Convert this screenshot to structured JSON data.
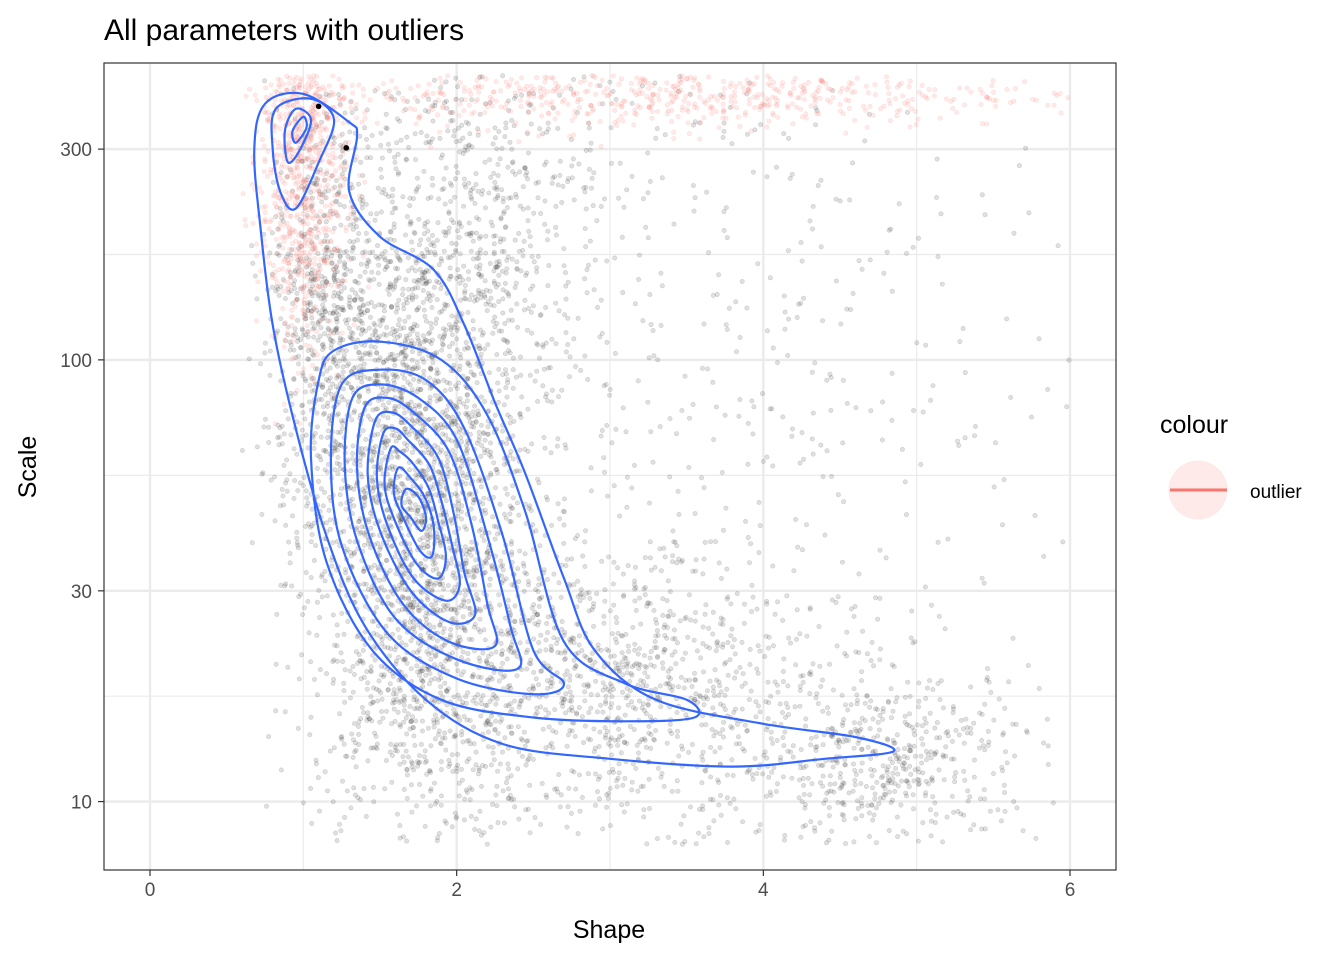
{
  "chart_data": {
    "type": "scatter",
    "title": "All parameters with outliers",
    "xlabel": "Shape",
    "ylabel": "Scale",
    "x_scale": "linear",
    "y_scale": "log10",
    "xlim": [
      -0.3,
      6.3
    ],
    "ylim": [
      7.0,
      470
    ],
    "x_ticks": [
      0,
      2,
      4,
      6
    ],
    "y_ticks": [
      10,
      30,
      100,
      300
    ],
    "x_tick_labels": [
      "0",
      "2",
      "4",
      "6"
    ],
    "y_tick_labels": [
      "10",
      "30",
      "100",
      "300"
    ],
    "grid": true,
    "theme": "bw",
    "legend": {
      "title": "colour",
      "position": "right",
      "entries": [
        {
          "label": "outlier",
          "color": "#F8766D"
        }
      ]
    },
    "series": [
      {
        "kind": "points",
        "color": "#000000",
        "opacity": 0.12,
        "cloud": [
          {
            "x": 1.75,
            "y": 45,
            "sx": 0.35,
            "sy": 0.38,
            "n": 2600
          },
          {
            "x": 1.15,
            "y": 120,
            "sx": 0.2,
            "sy": 0.25,
            "n": 700
          },
          {
            "x": 3.0,
            "y": 18,
            "sx": 0.6,
            "sy": 0.15,
            "n": 900
          },
          {
            "x": 4.8,
            "y": 12.5,
            "sx": 0.5,
            "sy": 0.1,
            "n": 500
          },
          {
            "x": 3.8,
            "y": 60,
            "sx": 1.1,
            "sy": 0.7,
            "n": 700
          },
          {
            "x": 2.2,
            "y": 200,
            "sx": 0.4,
            "sy": 0.25,
            "n": 500
          }
        ]
      },
      {
        "kind": "points",
        "name": "outlier",
        "color": "#F8766D",
        "opacity": 0.15,
        "cloud": [
          {
            "x": 1.0,
            "y": 290,
            "sx": 0.14,
            "sy": 0.22,
            "n": 900
          },
          {
            "x": 3.2,
            "y": 400,
            "sx": 1.3,
            "sy": 0.04,
            "n": 700
          }
        ]
      },
      {
        "kind": "points",
        "color": "#000000",
        "opacity": 1,
        "points": [
          {
            "x": 1.1,
            "y": 375
          },
          {
            "x": 1.28,
            "y": 302
          }
        ]
      },
      {
        "kind": "density_contours",
        "color": "#3366FF",
        "levels": [
          {
            "points": [
              [
                1.3,
                345
              ],
              [
                1.0,
                400
              ],
              [
                0.75,
                380
              ],
              [
                0.68,
                300
              ],
              [
                0.72,
                200
              ],
              [
                0.8,
                120
              ],
              [
                0.95,
                70
              ],
              [
                1.15,
                40
              ],
              [
                1.4,
                25
              ],
              [
                1.8,
                17
              ],
              [
                2.3,
                13.5
              ],
              [
                3.0,
                12.5
              ],
              [
                3.8,
                12
              ],
              [
                4.4,
                12.5
              ],
              [
                4.85,
                13
              ],
              [
                4.6,
                14
              ],
              [
                4.0,
                15
              ],
              [
                3.3,
                17
              ],
              [
                2.9,
                22
              ],
              [
                2.7,
                32
              ],
              [
                2.45,
                55
              ],
              [
                2.25,
                80
              ],
              [
                2.05,
                120
              ],
              [
                1.85,
                160
              ],
              [
                1.5,
                190
              ],
              [
                1.3,
                240
              ],
              [
                1.35,
                320
              ]
            ]
          },
          {
            "points": [
              [
                1.05,
                390
              ],
              [
                0.82,
                370
              ],
              [
                0.8,
                300
              ],
              [
                0.85,
                240
              ],
              [
                0.95,
                220
              ],
              [
                1.1,
                280
              ],
              [
                1.2,
                350
              ]
            ]
          },
          {
            "points": [
              [
                0.95,
                370
              ],
              [
                0.88,
                330
              ],
              [
                0.9,
                280
              ],
              [
                0.98,
                300
              ],
              [
                1.05,
                350
              ]
            ]
          },
          {
            "points": [
              [
                1.0,
                355
              ],
              [
                0.93,
                330
              ],
              [
                0.95,
                310
              ],
              [
                1.02,
                335
              ]
            ]
          },
          {
            "points": [
              [
                1.1,
                90
              ],
              [
                1.05,
                60
              ],
              [
                1.15,
                35
              ],
              [
                1.45,
                22
              ],
              [
                1.9,
                17
              ],
              [
                2.5,
                15.5
              ],
              [
                3.1,
                15.2
              ],
              [
                3.55,
                15.5
              ],
              [
                3.5,
                17
              ],
              [
                3.1,
                18.5
              ],
              [
                2.7,
                23
              ],
              [
                2.45,
                45
              ],
              [
                2.2,
                75
              ],
              [
                1.9,
                100
              ],
              [
                1.5,
                110
              ],
              [
                1.2,
                105
              ]
            ]
          },
          {
            "points": [
              [
                1.25,
                88
              ],
              [
                1.18,
                60
              ],
              [
                1.25,
                38
              ],
              [
                1.55,
                24
              ],
              [
                2.0,
                19
              ],
              [
                2.5,
                17.5
              ],
              [
                2.7,
                18.5
              ],
              [
                2.5,
                22
              ],
              [
                2.3,
                40
              ],
              [
                2.05,
                70
              ],
              [
                1.8,
                90
              ],
              [
                1.5,
                95
              ]
            ]
          },
          {
            "points": [
              [
                1.32,
                82
              ],
              [
                1.27,
                58
              ],
              [
                1.35,
                39
              ],
              [
                1.6,
                26
              ],
              [
                2.0,
                21
              ],
              [
                2.4,
                20
              ],
              [
                2.35,
                25
              ],
              [
                2.2,
                40
              ],
              [
                2.0,
                66
              ],
              [
                1.75,
                82
              ],
              [
                1.5,
                88
              ]
            ]
          },
          {
            "points": [
              [
                1.4,
                78
              ],
              [
                1.35,
                57
              ],
              [
                1.43,
                40
              ],
              [
                1.65,
                28
              ],
              [
                1.95,
                23
              ],
              [
                2.25,
                22.5
              ],
              [
                2.2,
                28
              ],
              [
                2.1,
                42
              ],
              [
                1.95,
                62
              ],
              [
                1.72,
                76
              ],
              [
                1.55,
                82
              ]
            ]
          },
          {
            "points": [
              [
                1.47,
                73
              ],
              [
                1.42,
                55
              ],
              [
                1.5,
                41
              ],
              [
                1.7,
                30
              ],
              [
                1.95,
                25.5
              ],
              [
                2.12,
                26.5
              ],
              [
                2.05,
                33
              ],
              [
                1.98,
                45
              ],
              [
                1.88,
                60
              ],
              [
                1.7,
                71
              ],
              [
                1.58,
                76
              ]
            ]
          },
          {
            "points": [
              [
                1.52,
                68
              ],
              [
                1.48,
                54
              ],
              [
                1.55,
                42
              ],
              [
                1.72,
                32
              ],
              [
                1.93,
                28.5
              ],
              [
                2.02,
                31
              ],
              [
                1.97,
                38
              ],
              [
                1.9,
                48
              ],
              [
                1.82,
                58
              ],
              [
                1.68,
                66
              ],
              [
                1.6,
                70
              ]
            ]
          },
          {
            "points": [
              [
                1.57,
                63
              ],
              [
                1.53,
                52
              ],
              [
                1.6,
                43
              ],
              [
                1.74,
                34.5
              ],
              [
                1.88,
                32
              ],
              [
                1.93,
                36
              ],
              [
                1.88,
                43
              ],
              [
                1.82,
                51
              ],
              [
                1.72,
                58
              ],
              [
                1.63,
                62
              ]
            ]
          },
          {
            "points": [
              [
                1.62,
                57
              ],
              [
                1.59,
                50
              ],
              [
                1.65,
                44
              ],
              [
                1.76,
                37
              ],
              [
                1.84,
                36
              ],
              [
                1.85,
                42
              ],
              [
                1.79,
                49
              ],
              [
                1.7,
                54
              ]
            ]
          },
          {
            "points": [
              [
                1.67,
                51
              ],
              [
                1.64,
                47
              ],
              [
                1.7,
                44
              ],
              [
                1.77,
                41
              ],
              [
                1.8,
                44
              ],
              [
                1.75,
                49
              ]
            ]
          }
        ]
      }
    ]
  }
}
